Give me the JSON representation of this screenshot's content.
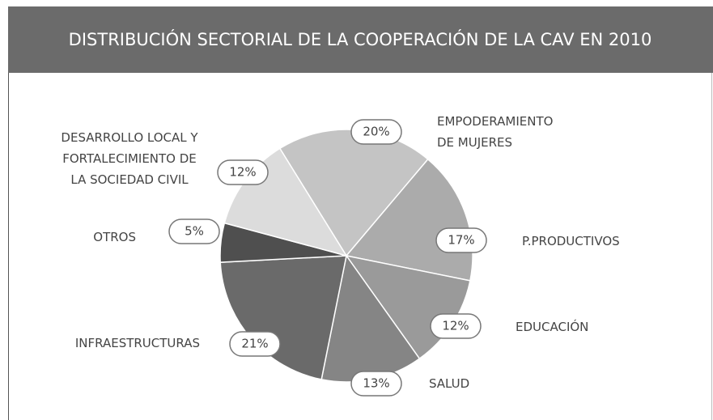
{
  "chart_data": {
    "type": "pie",
    "title": "DISTRIBUCIÓN SECTORIAL DE LA COOPERACIÓN DE LA CAV EN 2010",
    "categories": [
      "EMPODERAMIENTO\nDE MUJERES",
      "P.PRODUCTIVOS",
      "EDUCACIÓN",
      "SALUD",
      "INFRAESTRUCTURAS",
      "OTROS",
      "DESARROLLO LOCAL Y\nFORTALECIMIENTO DE\nLA SOCIEDAD CIVIL"
    ],
    "values": [
      20,
      17,
      12,
      13,
      21,
      5,
      12
    ],
    "value_labels": [
      "20%",
      "17%",
      "12%",
      "13%",
      "21%",
      "5%",
      "12%"
    ],
    "colors": [
      "#c4c4c4",
      "#ababab",
      "#9a9a9a",
      "#858585",
      "#6a6a6a",
      "#4f4f4f",
      "#dcdcdc"
    ]
  }
}
